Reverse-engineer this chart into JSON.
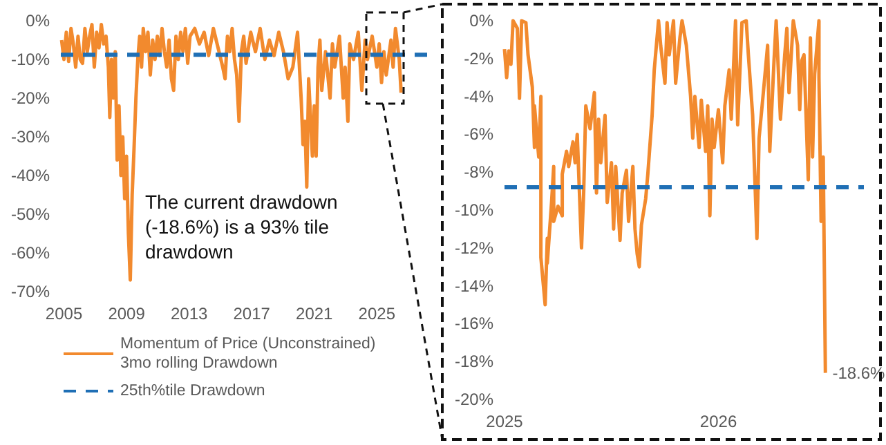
{
  "chart_data": [
    {
      "type": "line",
      "xlim": [
        2004.8,
        2028.3
      ],
      "xticks": [
        2005,
        2009,
        2013,
        2017,
        2021,
        2025
      ],
      "ylim": [
        -70,
        0
      ],
      "yticks": [
        {
          "value": -70,
          "label": "-70%"
        },
        {
          "value": -60,
          "label": "-60%"
        },
        {
          "value": -50,
          "label": "-50%"
        },
        {
          "value": -40,
          "label": "-40%"
        },
        {
          "value": -30,
          "label": "-30%"
        },
        {
          "value": -20,
          "label": "-20%"
        },
        {
          "value": -10,
          "label": "-10%"
        },
        {
          "value": 0,
          "label": "0%"
        }
      ],
      "marker": "none",
      "line_style": "solid",
      "legend": "bottom",
      "series": [
        {
          "name": "Momentum of Price (Unconstrained) 3mo rolling Drawdown",
          "color": "#f28a2e",
          "x": [
            2004.85,
            2005.0,
            2005.15,
            2005.3,
            2005.45,
            2005.6,
            2005.75,
            2005.9,
            2006.04,
            2006.19,
            2006.34,
            2006.49,
            2006.64,
            2006.79,
            2006.94,
            2007.09,
            2007.24,
            2007.39,
            2007.54,
            2007.69,
            2007.84,
            2007.93,
            2008.04,
            2008.16,
            2008.28,
            2008.4,
            2008.52,
            2008.64,
            2008.76,
            2008.88,
            2009.0,
            2009.12,
            2009.24,
            2009.36,
            2009.48,
            2009.6,
            2009.72,
            2009.84,
            2009.96,
            2010.07,
            2010.22,
            2010.37,
            2010.52,
            2010.67,
            2010.82,
            2010.97,
            2011.12,
            2011.27,
            2011.42,
            2011.57,
            2011.72,
            2011.87,
            2012.01,
            2012.16,
            2012.31,
            2012.46,
            2012.61,
            2012.76,
            2012.91,
            2013.06,
            2013.36,
            2013.66,
            2013.96,
            2014.25,
            2014.55,
            2014.85,
            2015.15,
            2015.3,
            2015.45,
            2015.6,
            2015.75,
            2015.9,
            2016.04,
            2016.19,
            2016.34,
            2016.49,
            2016.64,
            2016.94,
            2017.24,
            2017.54,
            2017.84,
            2018.13,
            2018.43,
            2018.73,
            2019.03,
            2019.33,
            2019.63,
            2019.93,
            2020.16,
            2020.28,
            2020.4,
            2020.52,
            2020.64,
            2020.76,
            2020.88,
            2021.0,
            2021.12,
            2021.24,
            2021.36,
            2021.48,
            2021.72,
            2022.01,
            2022.16,
            2022.31,
            2022.61,
            2022.85,
            2022.97,
            2023.15,
            2023.27,
            2023.51,
            2023.81,
            2024.04,
            2024.25,
            2024.4,
            2024.7,
            2025.0,
            2025.15,
            2025.3,
            2025.45,
            2025.6,
            2025.9,
            2026.04,
            2026.19,
            2026.43,
            2026.55
          ],
          "values": [
            -5,
            -10,
            -3,
            -10.5,
            -2,
            -6,
            -12,
            -4,
            -10,
            -11,
            -2,
            -8,
            -4,
            -1,
            -12,
            -3,
            -7,
            -1,
            -6,
            -4,
            -12,
            -25,
            -10,
            -20,
            -8,
            -36,
            -22,
            -40,
            -30,
            -46,
            -35,
            -55,
            -67,
            -45,
            -33,
            -20,
            -10,
            -4,
            -12,
            -2,
            -8,
            -3,
            -14,
            -5,
            -10,
            -4,
            -9,
            -2,
            -8,
            -12,
            -5,
            -15,
            -18,
            -4,
            -10,
            -3,
            -8,
            -2,
            -11,
            -4,
            -2,
            -6,
            -3,
            -9,
            -2,
            -7,
            -12,
            -15,
            -4,
            -8,
            -2,
            -10,
            -14,
            -26,
            -8,
            -4,
            -11,
            -3,
            -8,
            -2,
            -10,
            -5,
            -9,
            -3,
            -8,
            -15,
            -12,
            -3,
            -20,
            -32,
            -26,
            -43,
            -15,
            -25,
            -35,
            -22,
            -35,
            -12,
            -5,
            -18,
            -8,
            -20,
            -6,
            -12,
            -4,
            -20,
            -12,
            -26,
            -6,
            -10,
            -3,
            -18,
            -5,
            -10,
            -4,
            -12,
            -6,
            -16,
            -8,
            -14,
            -5,
            -12,
            -2,
            -10,
            -18.6
          ]
        }
      ],
      "ref_lines": [
        {
          "axis": "y",
          "value": -8.8,
          "label": "25th%tile Drawdown",
          "color": "#1f6fb5",
          "line_style": "dashed"
        }
      ],
      "annotations": [
        "The current drawdown (-18.6%) is a 93% tile drawdown"
      ]
    },
    {
      "type": "line",
      "xlim": [
        2025,
        2026.68
      ],
      "xticks": [
        2025,
        2026
      ],
      "ylim": [
        -20,
        0
      ],
      "yticks": [
        {
          "value": -20,
          "label": "-20%"
        },
        {
          "value": -18,
          "label": "-18%"
        },
        {
          "value": -16,
          "label": "-16%"
        },
        {
          "value": -14,
          "label": "-14%"
        },
        {
          "value": -12,
          "label": "-12%"
        },
        {
          "value": -10,
          "label": "-10%"
        },
        {
          "value": -8,
          "label": "-8%"
        },
        {
          "value": -6,
          "label": "-6%"
        },
        {
          "value": -4,
          "label": "-4%"
        },
        {
          "value": -2,
          "label": "-2%"
        },
        {
          "value": 0,
          "label": "0%"
        }
      ],
      "marker": "none",
      "line_style": "solid",
      "series": [
        {
          "color": "#f28a2e",
          "x": [
            2025.0,
            2025.01,
            2025.02,
            2025.03,
            2025.04,
            2025.06,
            2025.07,
            2025.08,
            2025.1,
            2025.11,
            2025.13,
            2025.14,
            2025.14,
            2025.16,
            2025.17,
            2025.17,
            2025.19,
            2025.2,
            2025.2,
            2025.22,
            2025.23,
            2025.23,
            2025.25,
            2025.27,
            2025.27,
            2025.29,
            2025.3,
            2025.32,
            2025.33,
            2025.34,
            2025.36,
            2025.37,
            2025.38,
            2025.4,
            2025.42,
            2025.43,
            2025.44,
            2025.45,
            2025.47,
            2025.48,
            2025.5,
            2025.51,
            2025.52,
            2025.54,
            2025.55,
            2025.57,
            2025.58,
            2025.6,
            2025.61,
            2025.62,
            2025.63,
            2025.64,
            2025.66,
            2025.67,
            2025.69,
            2025.7,
            2025.72,
            2025.73,
            2025.75,
            2025.76,
            2025.77,
            2025.79,
            2025.8,
            2025.82,
            2025.83,
            2025.85,
            2025.87,
            2025.88,
            2025.89,
            2025.91,
            2025.92,
            2025.94,
            2025.95,
            2025.96,
            2025.97,
            2025.98,
            2026.0,
            2026.02,
            2026.03,
            2026.05,
            2026.06,
            2026.08,
            2026.09,
            2026.11,
            2026.13,
            2026.14,
            2026.16,
            2026.18,
            2026.19,
            2026.21,
            2026.23,
            2026.24,
            2026.26,
            2026.27,
            2026.29,
            2026.31,
            2026.32,
            2026.33,
            2026.35,
            2026.37,
            2026.38,
            2026.39,
            2026.4,
            2026.42,
            2026.43,
            2026.44,
            2026.45,
            2026.47,
            2026.47,
            2026.48,
            2026.49,
            2026.5
          ],
          "values": [
            -1.5,
            -3,
            -1.6,
            -2.3,
            0,
            -0.4,
            -4.1,
            0,
            -0.1,
            -1.8,
            -3.5,
            -6.7,
            -4.5,
            -7.2,
            -4,
            -12.5,
            -15,
            -11.5,
            -12.8,
            -9.6,
            -7.7,
            -10.6,
            -9.8,
            -10.3,
            -8.1,
            -6.9,
            -7.7,
            -6.4,
            -7.5,
            -6,
            -12,
            -9.1,
            -4.5,
            -5.7,
            -3.8,
            -9.1,
            -5.2,
            -7.5,
            -5,
            -9.6,
            -7.5,
            -11,
            -7.7,
            -11.6,
            -9.1,
            -7.9,
            -10.6,
            -7.7,
            -11,
            -12.3,
            -13,
            -10.8,
            -9.4,
            -8.1,
            -5,
            -2.6,
            0,
            -1.3,
            -3.3,
            -0.1,
            -1.8,
            0,
            -3.3,
            -0.9,
            0,
            -1.3,
            -4,
            -6.2,
            -4,
            -6.7,
            -4.2,
            -6.9,
            -4.5,
            -10.3,
            -5.2,
            -6.7,
            -4.7,
            -7.5,
            -4.5,
            -2.6,
            -5.2,
            0,
            -5.5,
            -0.1,
            0,
            -1.8,
            -5,
            -11.5,
            -6.2,
            -3.8,
            -1.3,
            -6.9,
            -2.1,
            0,
            -5.2,
            -1.8,
            -0.4,
            -3.8,
            0,
            -1.3,
            -4.7,
            -2.1,
            -1.8,
            -8.4,
            -0.9,
            -7.2,
            -2.8,
            0,
            -3,
            -10.6,
            -7.2,
            -18.6
          ],
          "value_labels": [
            null,
            null,
            null,
            null,
            null,
            null,
            null,
            null,
            null,
            null,
            null,
            null,
            null,
            null,
            null,
            null,
            null,
            null,
            null,
            null,
            null,
            null,
            null,
            null,
            null,
            null,
            null,
            null,
            null,
            null,
            null,
            null,
            null,
            null,
            null,
            null,
            null,
            null,
            null,
            null,
            null,
            null,
            null,
            null,
            null,
            null,
            null,
            null,
            null,
            null,
            null,
            null,
            null,
            null,
            null,
            null,
            null,
            null,
            null,
            null,
            null,
            null,
            null,
            null,
            null,
            null,
            null,
            null,
            null,
            null,
            null,
            null,
            null,
            null,
            null,
            null,
            null,
            null,
            null,
            null,
            null,
            null,
            null,
            null,
            null,
            null,
            null,
            null,
            null,
            null,
            null,
            null,
            null,
            null,
            null,
            null,
            null,
            null,
            null,
            null,
            null,
            null,
            null,
            null,
            null,
            null,
            null,
            null,
            null,
            null,
            null,
            "-18.6%"
          ]
        }
      ],
      "ref_lines": [
        {
          "axis": "y",
          "value": -8.8,
          "color": "#1f6fb5",
          "line_style": "dashed"
        }
      ]
    }
  ]
}
